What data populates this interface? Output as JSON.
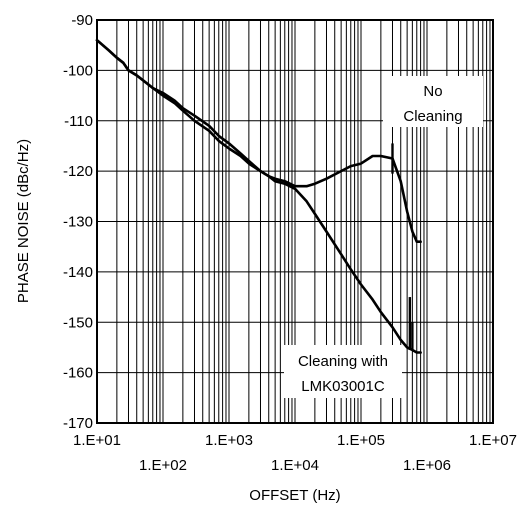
{
  "chart_data": {
    "type": "line",
    "x_scale": "log",
    "xlabel": "OFFSET (Hz)",
    "ylabel": "PHASE NOISE (dBc/Hz)",
    "xlim": [
      10,
      10000000
    ],
    "ylim": [
      -170,
      -90
    ],
    "grid": true,
    "x_ticks_upper": [
      "1.E+01",
      "1.E+03",
      "1.E+05",
      "1.E+07"
    ],
    "x_ticks_lower": [
      "1.E+02",
      "1.E+04",
      "1.E+06"
    ],
    "y_ticks": [
      "-90",
      "-100",
      "-110",
      "-120",
      "-130",
      "-140",
      "-150",
      "-160",
      "-170"
    ],
    "annotations": [
      {
        "lines": [
          "No",
          "Cleaning"
        ]
      },
      {
        "lines": [
          "Cleaning with",
          "LMK03001C"
        ]
      }
    ],
    "series": [
      {
        "x": [
          10,
          15,
          20,
          25,
          30,
          40,
          50,
          70,
          100,
          150,
          200,
          300,
          500,
          700,
          1000,
          1500,
          2000,
          3000,
          4000,
          5000,
          7000,
          10000,
          15000,
          20000,
          30000,
          50000,
          70000,
          100000,
          150000,
          200000,
          300000,
          400000,
          500000,
          600000,
          700000,
          800000
        ],
        "y": [
          -94,
          -96,
          -97.5,
          -98.5,
          -100,
          -101,
          -102,
          -103.5,
          -105,
          -106.5,
          -108,
          -110,
          -112,
          -114,
          -115.5,
          -117,
          -118.5,
          -120,
          -121,
          -121.5,
          -122,
          -123,
          -123,
          -122.5,
          -121.5,
          -120,
          -119,
          -118.5,
          -117,
          -117,
          -117.5,
          -122,
          -128,
          -132,
          -134,
          -134
        ]
      },
      {
        "x": [
          10,
          15,
          20,
          25,
          30,
          40,
          50,
          70,
          100,
          150,
          200,
          300,
          500,
          700,
          1000,
          1500,
          2000,
          3000,
          4000,
          5000,
          7000,
          10000,
          15000,
          20000,
          30000,
          50000,
          70000,
          100000,
          150000,
          200000,
          300000,
          400000,
          500000,
          600000,
          700000,
          800000
        ],
        "y": [
          -94,
          -96,
          -97.5,
          -98.5,
          -100,
          -101,
          -102,
          -103.5,
          -104.5,
          -106,
          -107.5,
          -109,
          -111,
          -113,
          -114.5,
          -116.5,
          -118,
          -120,
          -121,
          -122,
          -122.5,
          -123.5,
          -126,
          -128.5,
          -132,
          -136.5,
          -139.5,
          -142.5,
          -145.5,
          -148,
          -151,
          -153.5,
          -155,
          -155.5,
          -156,
          -156
        ]
      }
    ],
    "spikes": [
      {
        "x": 300000,
        "from": -120.5,
        "to": -114.5
      },
      {
        "x": 550000,
        "from": -155.5,
        "to": -145
      },
      {
        "x": 600000,
        "from": -155.5,
        "to": -150
      }
    ]
  }
}
